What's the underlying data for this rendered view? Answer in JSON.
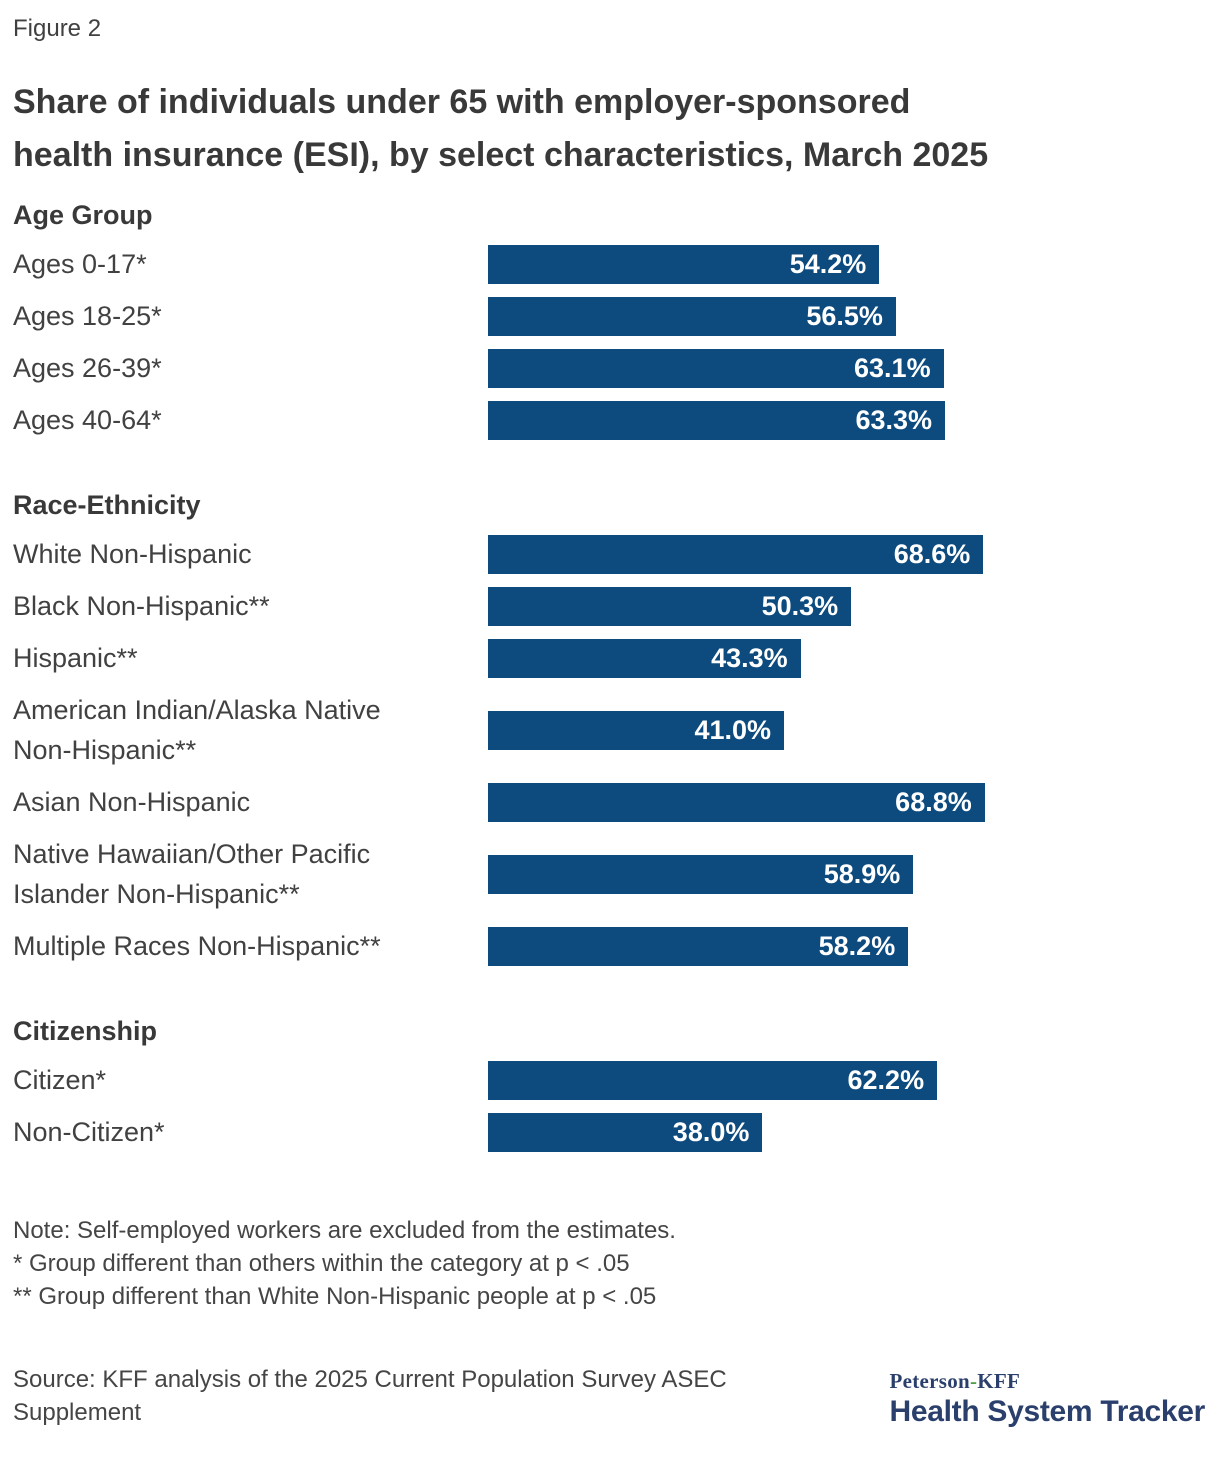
{
  "figure_label": "Figure 2",
  "title_lines": [
    "Share of individuals under 65 with employer-sponsored",
    "health insurance (ESI), by select characteristics, March 2025"
  ],
  "chart_data": {
    "type": "bar",
    "orientation": "horizontal",
    "title": "Share of individuals under 65 with employer-sponsored health insurance (ESI), by select characteristics, March 2025",
    "value_unit": "percent",
    "xlim": [
      0,
      100
    ],
    "grid": false,
    "legend": false,
    "bar_color": "#0d4a7e",
    "value_label_color": "#ffffff",
    "sections": [
      {
        "header": "Age Group",
        "rows": [
          {
            "label": "Ages 0-17*",
            "value": 54.2,
            "value_label": "54.2%"
          },
          {
            "label": "Ages 18-25*",
            "value": 56.5,
            "value_label": "56.5%"
          },
          {
            "label": "Ages 26-39*",
            "value": 63.1,
            "value_label": "63.1%"
          },
          {
            "label": "Ages 40-64*",
            "value": 63.3,
            "value_label": "63.3%"
          }
        ]
      },
      {
        "header": "Race-Ethnicity",
        "rows": [
          {
            "label": "White Non-Hispanic",
            "value": 68.6,
            "value_label": "68.6%"
          },
          {
            "label": "Black Non-Hispanic**",
            "value": 50.3,
            "value_label": "50.3%"
          },
          {
            "label": "Hispanic**",
            "value": 43.3,
            "value_label": "43.3%"
          },
          {
            "label": "American Indian/Alaska Native Non-Hispanic**",
            "value": 41.0,
            "value_label": "41.0%"
          },
          {
            "label": "Asian Non-Hispanic",
            "value": 68.8,
            "value_label": "68.8%"
          },
          {
            "label": "Native Hawaiian/Other Pacific Islander Non-Hispanic**",
            "value": 58.9,
            "value_label": "58.9%"
          },
          {
            "label": "Multiple Races Non-Hispanic**",
            "value": 58.2,
            "value_label": "58.2%"
          }
        ]
      },
      {
        "header": "Citizenship",
        "rows": [
          {
            "label": "Citizen*",
            "value": 62.2,
            "value_label": "62.2%"
          },
          {
            "label": "Non-Citizen*",
            "value": 38.0,
            "value_label": "38.0%"
          }
        ]
      }
    ]
  },
  "notes": [
    "Note: Self-employed workers are excluded from the estimates.",
    "* Group different than others within the category at p < .05",
    "** Group different than White Non-Hispanic people at p < .05"
  ],
  "source": "Source: KFF analysis of the 2025 Current Population Survey ASEC Supplement",
  "logo": {
    "name_prefix": "Peterson",
    "separator": "-",
    "name_suffix": "KFF",
    "product": "Health System Tracker"
  }
}
